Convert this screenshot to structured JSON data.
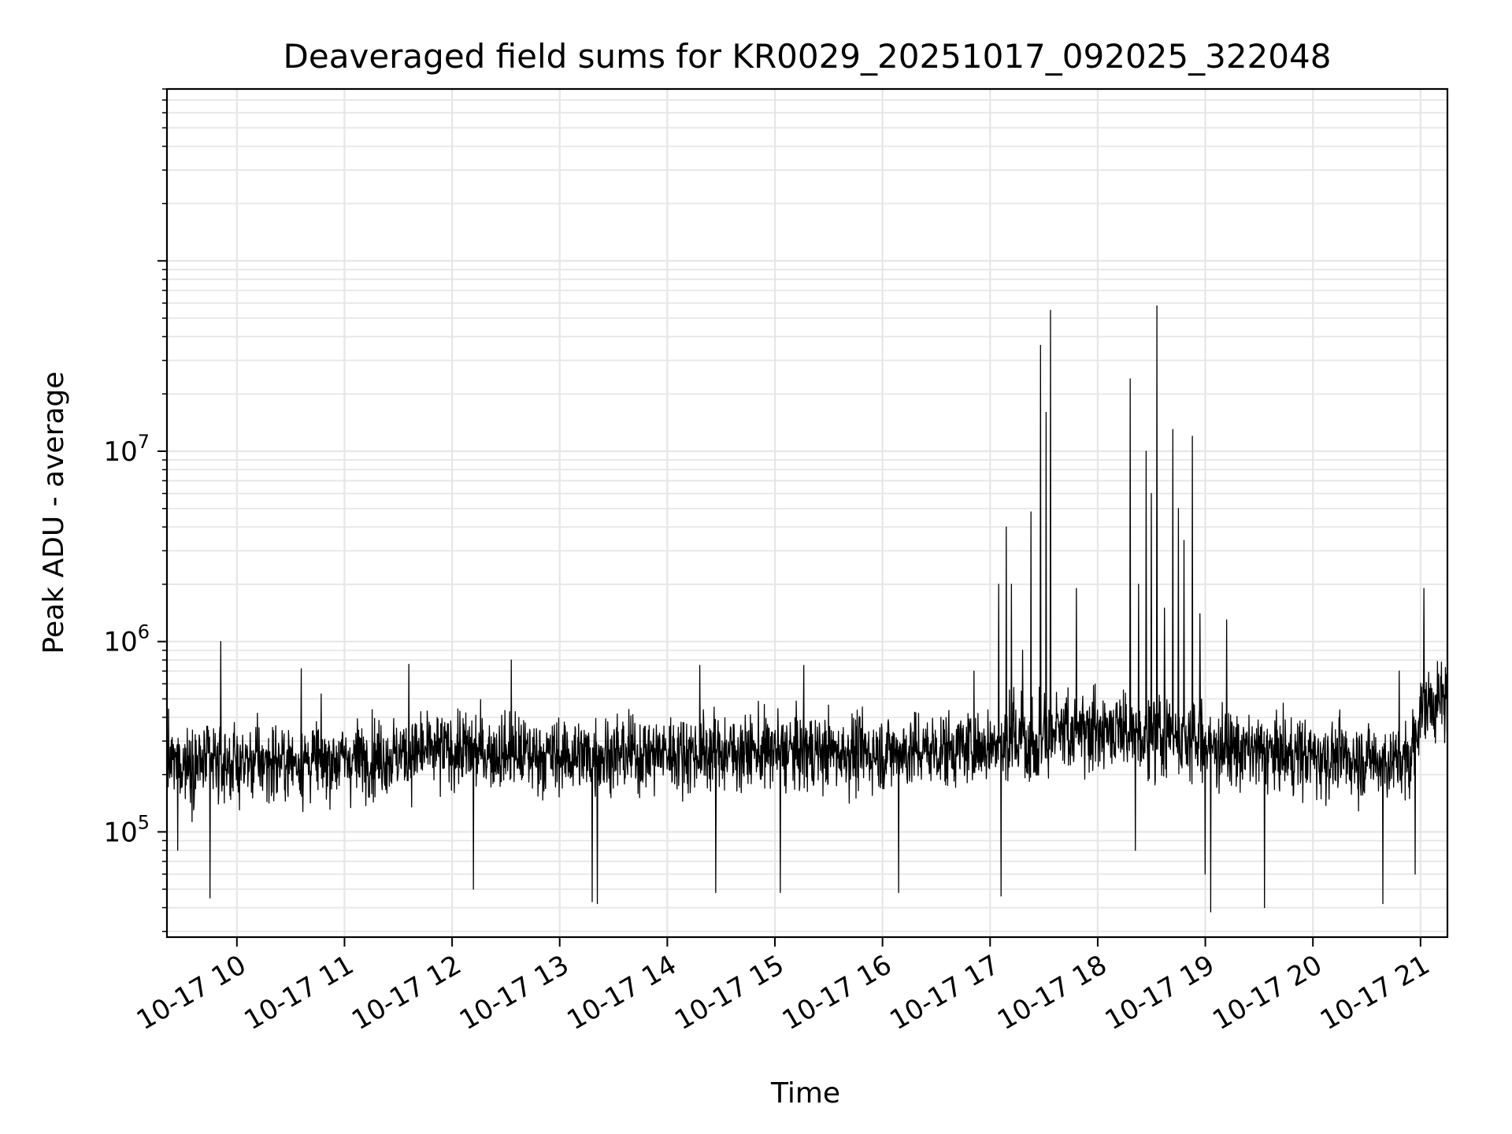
{
  "chart_data": {
    "type": "line",
    "title": "Deaveraged field sums for KR0029_20251017_092025_322048",
    "xlabel": "Time",
    "ylabel": "Peak ADU - average",
    "y_scale": "log",
    "ylim": [
      28000,
      800000000
    ],
    "xlim_hours": [
      9.35,
      21.25
    ],
    "grid": true,
    "line_color": "#000000",
    "grid_color": "#e6e6e6",
    "x_ticks": [
      {
        "hour": 10,
        "label": "10-17 10"
      },
      {
        "hour": 11,
        "label": "10-17 11"
      },
      {
        "hour": 12,
        "label": "10-17 12"
      },
      {
        "hour": 13,
        "label": "10-17 13"
      },
      {
        "hour": 14,
        "label": "10-17 14"
      },
      {
        "hour": 15,
        "label": "10-17 15"
      },
      {
        "hour": 16,
        "label": "10-17 16"
      },
      {
        "hour": 17,
        "label": "10-17 17"
      },
      {
        "hour": 18,
        "label": "10-17 18"
      },
      {
        "hour": 19,
        "label": "10-17 19"
      },
      {
        "hour": 20,
        "label": "10-17 20"
      },
      {
        "hour": 21,
        "label": "10-17 21"
      }
    ],
    "y_ticks": [
      {
        "value": 100000,
        "base": "10",
        "exp": "5"
      },
      {
        "value": 1000000,
        "base": "10",
        "exp": "6"
      },
      {
        "value": 10000000,
        "base": "10",
        "exp": "7"
      }
    ],
    "series": [
      {
        "name": "Peak ADU - average",
        "baseline": [
          {
            "hour": 9.35,
            "value": 230000
          },
          {
            "hour": 10.0,
            "value": 230000
          },
          {
            "hour": 11.0,
            "value": 240000
          },
          {
            "hour": 12.0,
            "value": 270000
          },
          {
            "hour": 13.0,
            "value": 250000
          },
          {
            "hour": 14.0,
            "value": 260000
          },
          {
            "hour": 15.0,
            "value": 265000
          },
          {
            "hour": 16.0,
            "value": 260000
          },
          {
            "hour": 17.0,
            "value": 280000
          },
          {
            "hour": 18.0,
            "value": 320000
          },
          {
            "hour": 18.7,
            "value": 300000
          },
          {
            "hour": 19.5,
            "value": 260000
          },
          {
            "hour": 20.5,
            "value": 240000
          },
          {
            "hour": 20.9,
            "value": 230000
          },
          {
            "hour": 21.0,
            "value": 450000
          },
          {
            "hour": 21.25,
            "value": 500000
          }
        ],
        "noise_decades": 0.14,
        "points_per_hour": 270,
        "spikes": [
          {
            "hour": 9.85,
            "value": 1000000
          },
          {
            "hour": 10.6,
            "value": 720000
          },
          {
            "hour": 11.6,
            "value": 760000
          },
          {
            "hour": 12.55,
            "value": 800000
          },
          {
            "hour": 14.3,
            "value": 750000
          },
          {
            "hour": 15.27,
            "value": 750000
          },
          {
            "hour": 16.85,
            "value": 700000
          },
          {
            "hour": 17.08,
            "value": 2000000
          },
          {
            "hour": 17.15,
            "value": 4000000
          },
          {
            "hour": 17.2,
            "value": 2000000
          },
          {
            "hour": 17.3,
            "value": 900000
          },
          {
            "hour": 17.38,
            "value": 4800000
          },
          {
            "hour": 17.47,
            "value": 36000000
          },
          {
            "hour": 17.52,
            "value": 16000000
          },
          {
            "hour": 17.56,
            "value": 55000000
          },
          {
            "hour": 17.8,
            "value": 1900000
          },
          {
            "hour": 18.3,
            "value": 24000000
          },
          {
            "hour": 18.38,
            "value": 2000000
          },
          {
            "hour": 18.45,
            "value": 10000000
          },
          {
            "hour": 18.5,
            "value": 6000000
          },
          {
            "hour": 18.55,
            "value": 58000000
          },
          {
            "hour": 18.62,
            "value": 1500000
          },
          {
            "hour": 18.7,
            "value": 13000000
          },
          {
            "hour": 18.75,
            "value": 5000000
          },
          {
            "hour": 18.8,
            "value": 3400000
          },
          {
            "hour": 18.88,
            "value": 12000000
          },
          {
            "hour": 18.95,
            "value": 1400000
          },
          {
            "hour": 19.2,
            "value": 1300000
          },
          {
            "hour": 20.8,
            "value": 700000
          },
          {
            "hour": 21.03,
            "value": 1900000
          }
        ],
        "dips": [
          {
            "hour": 9.45,
            "value": 80000
          },
          {
            "hour": 9.75,
            "value": 45000
          },
          {
            "hour": 12.2,
            "value": 50000
          },
          {
            "hour": 13.3,
            "value": 43000
          },
          {
            "hour": 13.35,
            "value": 42000
          },
          {
            "hour": 14.45,
            "value": 48000
          },
          {
            "hour": 15.05,
            "value": 48000
          },
          {
            "hour": 16.15,
            "value": 48000
          },
          {
            "hour": 17.1,
            "value": 46000
          },
          {
            "hour": 18.35,
            "value": 80000
          },
          {
            "hour": 19.0,
            "value": 60000
          },
          {
            "hour": 19.05,
            "value": 38000
          },
          {
            "hour": 19.55,
            "value": 40000
          },
          {
            "hour": 20.65,
            "value": 42000
          },
          {
            "hour": 20.95,
            "value": 60000
          }
        ]
      }
    ]
  }
}
